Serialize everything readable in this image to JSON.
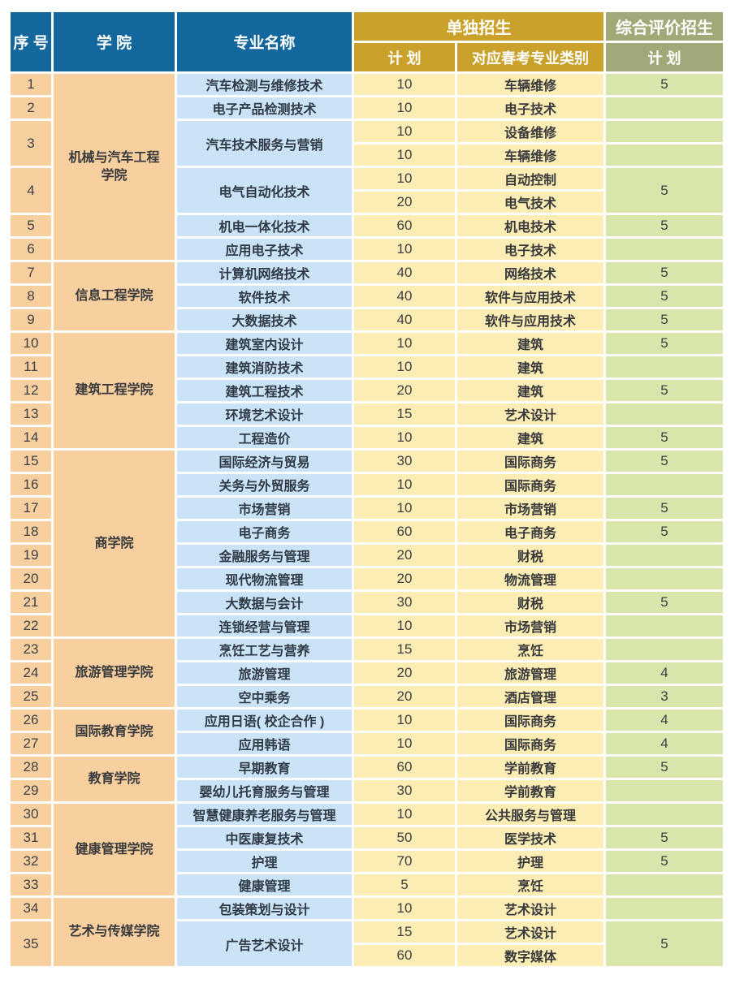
{
  "colors": {
    "header_blue": "#13679c",
    "header_gold": "#caa12b",
    "header_olive": "#a3a878",
    "cell_peach": "#f8d0a0",
    "cell_blue": "#cae3f7",
    "cell_yellow": "#fcedb5",
    "cell_green": "#d8e5ab"
  },
  "header": {
    "seq": "序 号",
    "college": "学 院",
    "major": "专业名称",
    "separate_group": "单独招生",
    "plan": "计 划",
    "category": "对应春考专业类别",
    "comprehensive_group": "综合评价招生",
    "comp_plan": "计 划"
  },
  "rows": [
    {
      "no": "1",
      "college": "机械与汽车工程\n学院",
      "college_span": 8,
      "major": "汽车检测与维修技术",
      "subrows": [
        {
          "plan": "10",
          "category": "车辆维修",
          "comp": "5"
        }
      ]
    },
    {
      "no": "2",
      "major": "电子产品检测技术",
      "subrows": [
        {
          "plan": "10",
          "category": "电子技术",
          "comp": ""
        }
      ]
    },
    {
      "no": "3",
      "major": "汽车技术服务与营销",
      "subrows": [
        {
          "plan": "10",
          "category": "设备维修",
          "comp": ""
        },
        {
          "plan": "10",
          "category": "车辆维修",
          "comp": ""
        }
      ]
    },
    {
      "no": "4",
      "major": "电气自动化技术",
      "comp_merged": "5",
      "subrows": [
        {
          "plan": "10",
          "category": "自动控制"
        },
        {
          "plan": "20",
          "category": "电气技术"
        }
      ]
    },
    {
      "no": "5",
      "major": "机电一体化技术",
      "subrows": [
        {
          "plan": "60",
          "category": "机电技术",
          "comp": "5"
        }
      ]
    },
    {
      "no": "6",
      "major": "应用电子技术",
      "subrows": [
        {
          "plan": "10",
          "category": "电子技术",
          "comp": ""
        }
      ]
    },
    {
      "no": "7",
      "college": "信息工程学院",
      "college_span": 3,
      "major": "计算机网络技术",
      "subrows": [
        {
          "plan": "40",
          "category": "网络技术",
          "comp": "5"
        }
      ]
    },
    {
      "no": "8",
      "major": "软件技术",
      "subrows": [
        {
          "plan": "40",
          "category": "软件与应用技术",
          "comp": "5"
        }
      ]
    },
    {
      "no": "9",
      "major": "大数据技术",
      "subrows": [
        {
          "plan": "40",
          "category": "软件与应用技术",
          "comp": "5"
        }
      ]
    },
    {
      "no": "10",
      "college": "建筑工程学院",
      "college_span": 5,
      "major": "建筑室内设计",
      "subrows": [
        {
          "plan": "10",
          "category": "建筑",
          "comp": "5"
        }
      ]
    },
    {
      "no": "11",
      "major": "建筑消防技术",
      "subrows": [
        {
          "plan": "10",
          "category": "建筑",
          "comp": ""
        }
      ]
    },
    {
      "no": "12",
      "major": "建筑工程技术",
      "subrows": [
        {
          "plan": "20",
          "category": "建筑",
          "comp": "5"
        }
      ]
    },
    {
      "no": "13",
      "major": "环境艺术设计",
      "subrows": [
        {
          "plan": "15",
          "category": "艺术设计",
          "comp": ""
        }
      ]
    },
    {
      "no": "14",
      "major": "工程造价",
      "subrows": [
        {
          "plan": "10",
          "category": "建筑",
          "comp": "5"
        }
      ]
    },
    {
      "no": "15",
      "college": "商学院",
      "college_span": 8,
      "major": "国际经济与贸易",
      "subrows": [
        {
          "plan": "30",
          "category": "国际商务",
          "comp": "5"
        }
      ]
    },
    {
      "no": "16",
      "major": "关务与外贸服务",
      "subrows": [
        {
          "plan": "10",
          "category": "国际商务",
          "comp": ""
        }
      ]
    },
    {
      "no": "17",
      "major": "市场营销",
      "subrows": [
        {
          "plan": "10",
          "category": "市场营销",
          "comp": "5"
        }
      ]
    },
    {
      "no": "18",
      "major": "电子商务",
      "subrows": [
        {
          "plan": "60",
          "category": "电子商务",
          "comp": "5"
        }
      ]
    },
    {
      "no": "19",
      "major": "金融服务与管理",
      "subrows": [
        {
          "plan": "20",
          "category": "财税",
          "comp": ""
        }
      ]
    },
    {
      "no": "20",
      "major": "现代物流管理",
      "subrows": [
        {
          "plan": "20",
          "category": "物流管理",
          "comp": ""
        }
      ]
    },
    {
      "no": "21",
      "major": "大数据与会计",
      "subrows": [
        {
          "plan": "30",
          "category": "财税",
          "comp": "5"
        }
      ]
    },
    {
      "no": "22",
      "major": "连锁经营与管理",
      "subrows": [
        {
          "plan": "10",
          "category": "市场营销",
          "comp": ""
        }
      ]
    },
    {
      "no": "23",
      "college": "旅游管理学院",
      "college_span": 3,
      "major": "烹饪工艺与营养",
      "subrows": [
        {
          "plan": "15",
          "category": "烹饪",
          "comp": ""
        }
      ]
    },
    {
      "no": "24",
      "major": "旅游管理",
      "subrows": [
        {
          "plan": "20",
          "category": "旅游管理",
          "comp": "4"
        }
      ]
    },
    {
      "no": "25",
      "major": "空中乘务",
      "subrows": [
        {
          "plan": "20",
          "category": "酒店管理",
          "comp": "3"
        }
      ]
    },
    {
      "no": "26",
      "college": "国际教育学院",
      "college_span": 2,
      "major": "应用日语( 校企合作 )",
      "subrows": [
        {
          "plan": "10",
          "category": "国际商务",
          "comp": "4"
        }
      ]
    },
    {
      "no": "27",
      "major": "应用韩语",
      "subrows": [
        {
          "plan": "10",
          "category": "国际商务",
          "comp": "4"
        }
      ]
    },
    {
      "no": "28",
      "college": "教育学院",
      "college_span": 2,
      "major": "早期教育",
      "subrows": [
        {
          "plan": "60",
          "category": "学前教育",
          "comp": "5"
        }
      ]
    },
    {
      "no": "29",
      "major": "婴幼儿托育服务与管理",
      "subrows": [
        {
          "plan": "30",
          "category": "学前教育",
          "comp": ""
        }
      ]
    },
    {
      "no": "30",
      "college": "健康管理学院",
      "college_span": 4,
      "major": "智慧健康养老服务与管理",
      "subrows": [
        {
          "plan": "10",
          "category": "公共服务与管理",
          "comp": ""
        }
      ]
    },
    {
      "no": "31",
      "major": "中医康复技术",
      "subrows": [
        {
          "plan": "50",
          "category": "医学技术",
          "comp": "5"
        }
      ]
    },
    {
      "no": "32",
      "major": "护理",
      "subrows": [
        {
          "plan": "70",
          "category": "护理",
          "comp": "5"
        }
      ]
    },
    {
      "no": "33",
      "major": "健康管理",
      "subrows": [
        {
          "plan": "5",
          "category": "烹饪",
          "comp": ""
        }
      ]
    },
    {
      "no": "34",
      "college": "艺术与传媒学院",
      "college_span": 3,
      "major": "包装策划与设计",
      "subrows": [
        {
          "plan": "10",
          "category": "艺术设计",
          "comp": ""
        }
      ]
    },
    {
      "no": "35",
      "major": "广告艺术设计",
      "comp_merged": "5",
      "subrows": [
        {
          "plan": "15",
          "category": "艺术设计"
        },
        {
          "plan": "60",
          "category": "数字媒体"
        }
      ]
    }
  ]
}
